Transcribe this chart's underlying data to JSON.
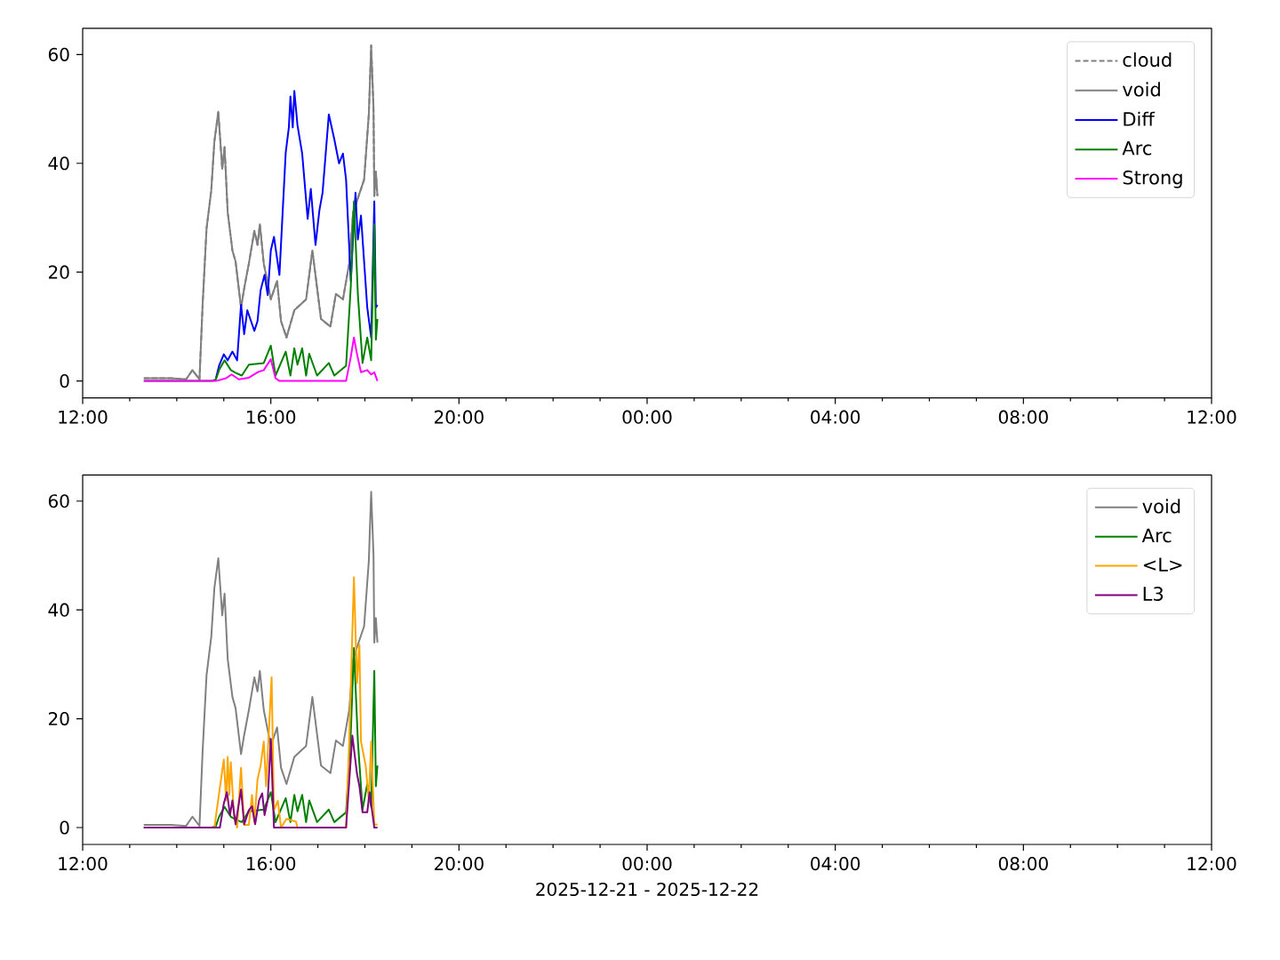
{
  "chart_data": [
    {
      "type": "line",
      "xlim": [
        "2025-12-21T12:00",
        "2025-12-22T12:00"
      ],
      "ylim": [
        -3.1,
        64.8
      ],
      "yticks": [
        0,
        20,
        40,
        60
      ],
      "xticks": [
        {
          "value": "2025-12-21T12:00",
          "label": "12:00"
        },
        {
          "value": "2025-12-21T13:00",
          "label": null
        },
        {
          "value": "2025-12-21T14:00",
          "label": null
        },
        {
          "value": "2025-12-21T15:00",
          "label": null
        },
        {
          "value": "2025-12-21T16:00",
          "label": "16:00"
        },
        {
          "value": "2025-12-21T17:00",
          "label": null
        },
        {
          "value": "2025-12-21T18:00",
          "label": null
        },
        {
          "value": "2025-12-21T19:00",
          "label": null
        },
        {
          "value": "2025-12-21T20:00",
          "label": "20:00"
        },
        {
          "value": "2025-12-21T21:00",
          "label": null
        },
        {
          "value": "2025-12-21T22:00",
          "label": null
        },
        {
          "value": "2025-12-21T23:00",
          "label": null
        },
        {
          "value": "2025-12-22T00:00",
          "label": "00:00"
        },
        {
          "value": "2025-12-22T01:00",
          "label": null
        },
        {
          "value": "2025-12-22T02:00",
          "label": null
        },
        {
          "value": "2025-12-22T03:00",
          "label": null
        },
        {
          "value": "2025-12-22T04:00",
          "label": "04:00"
        },
        {
          "value": "2025-12-22T05:00",
          "label": null
        },
        {
          "value": "2025-12-22T06:00",
          "label": null
        },
        {
          "value": "2025-12-22T07:00",
          "label": null
        },
        {
          "value": "2025-12-22T08:00",
          "label": "08:00"
        },
        {
          "value": "2025-12-22T09:00",
          "label": null
        },
        {
          "value": "2025-12-22T10:00",
          "label": null
        },
        {
          "value": "2025-12-22T11:00",
          "label": null
        },
        {
          "value": "2025-12-22T12:00",
          "label": "12:00"
        }
      ],
      "legend": "top right",
      "series": [
        {
          "name": "cloud",
          "color": "#808080",
          "line_style": "dashed",
          "x": [
            "2025-12-21T13:18",
            "2025-12-21T13:53",
            "2025-12-21T14:12",
            "2025-12-21T14:20",
            "2025-12-21T14:29",
            "2025-12-21T14:33",
            "2025-12-21T14:38",
            "2025-12-21T14:44",
            "2025-12-21T14:48",
            "2025-12-21T14:53",
            "2025-12-21T14:58",
            "2025-12-21T15:01",
            "2025-12-21T15:05",
            "2025-12-21T15:11",
            "2025-12-21T15:15",
            "2025-12-21T15:22",
            "2025-12-21T15:26",
            "2025-12-21T15:32",
            "2025-12-21T15:39",
            "2025-12-21T15:43",
            "2025-12-21T15:46",
            "2025-12-21T15:51",
            "2025-12-21T16:00",
            "2025-12-21T16:08",
            "2025-12-21T16:13",
            "2025-12-21T16:20",
            "2025-12-21T16:30",
            "2025-12-21T16:45",
            "2025-12-21T16:53",
            "2025-12-21T17:04",
            "2025-12-21T17:16",
            "2025-12-21T17:23",
            "2025-12-21T17:32",
            "2025-12-21T17:40",
            "2025-12-21T17:45",
            "2025-12-21T17:59",
            "2025-12-21T18:05",
            "2025-12-21T18:08",
            "2025-12-21T18:11",
            "2025-12-21T18:12",
            "2025-12-21T18:14",
            "2025-12-21T18:16"
          ],
          "values": [
            0.5,
            0.5,
            0.3,
            2,
            0.3,
            14,
            28,
            35,
            44,
            49.5,
            39,
            43,
            31,
            24,
            22,
            13.5,
            17,
            21.6,
            27.6,
            25,
            28.8,
            21.6,
            15,
            18.4,
            11,
            8,
            13,
            15,
            24,
            11.4,
            10,
            16,
            15,
            21.6,
            31,
            37,
            49,
            61.7,
            50,
            34,
            38.5,
            34
          ]
        },
        {
          "name": "void",
          "color": "#808080",
          "x": [
            "2025-12-21T13:18",
            "2025-12-21T13:53",
            "2025-12-21T14:12",
            "2025-12-21T14:20",
            "2025-12-21T14:29",
            "2025-12-21T14:33",
            "2025-12-21T14:38",
            "2025-12-21T14:44",
            "2025-12-21T14:48",
            "2025-12-21T14:53",
            "2025-12-21T14:58",
            "2025-12-21T15:01",
            "2025-12-21T15:05",
            "2025-12-21T15:11",
            "2025-12-21T15:15",
            "2025-12-21T15:22",
            "2025-12-21T15:26",
            "2025-12-21T15:32",
            "2025-12-21T15:39",
            "2025-12-21T15:43",
            "2025-12-21T15:46",
            "2025-12-21T15:51",
            "2025-12-21T16:00",
            "2025-12-21T16:08",
            "2025-12-21T16:13",
            "2025-12-21T16:20",
            "2025-12-21T16:30",
            "2025-12-21T16:45",
            "2025-12-21T16:53",
            "2025-12-21T17:04",
            "2025-12-21T17:16",
            "2025-12-21T17:23",
            "2025-12-21T17:32",
            "2025-12-21T17:40",
            "2025-12-21T17:45",
            "2025-12-21T17:59",
            "2025-12-21T18:05",
            "2025-12-21T18:08",
            "2025-12-21T18:11",
            "2025-12-21T18:12",
            "2025-12-21T18:14",
            "2025-12-21T18:16"
          ],
          "values": [
            0.5,
            0.5,
            0.3,
            2,
            0.3,
            14,
            28,
            35,
            44,
            49.5,
            39,
            43,
            31,
            24,
            22,
            13.5,
            17,
            21.6,
            27.6,
            25,
            28.8,
            21.6,
            15,
            18.4,
            11,
            8,
            13,
            15,
            24,
            11.4,
            10,
            16,
            15,
            21.6,
            31,
            37,
            49,
            61.7,
            50,
            34,
            38.5,
            34
          ]
        },
        {
          "name": "Diff",
          "color": "#0000ff",
          "x": [
            "2025-12-21T14:50",
            "2025-12-21T14:54",
            "2025-12-21T15:00",
            "2025-12-21T15:05",
            "2025-12-21T15:11",
            "2025-12-21T15:17",
            "2025-12-21T15:22",
            "2025-12-21T15:26",
            "2025-12-21T15:30",
            "2025-12-21T15:39",
            "2025-12-21T15:43",
            "2025-12-21T15:47",
            "2025-12-21T15:52",
            "2025-12-21T15:56",
            "2025-12-21T16:00",
            "2025-12-21T16:04",
            "2025-12-21T16:11",
            "2025-12-21T16:19",
            "2025-12-21T16:23",
            "2025-12-21T16:25",
            "2025-12-21T16:28",
            "2025-12-21T16:30",
            "2025-12-21T16:34",
            "2025-12-21T16:40",
            "2025-12-21T16:47",
            "2025-12-21T16:51",
            "2025-12-21T16:57",
            "2025-12-21T17:02",
            "2025-12-21T17:06",
            "2025-12-21T17:14",
            "2025-12-21T17:21",
            "2025-12-21T17:27",
            "2025-12-21T17:32",
            "2025-12-21T17:36",
            "2025-12-21T17:42",
            "2025-12-21T17:48",
            "2025-12-21T17:51",
            "2025-12-21T17:55",
            "2025-12-21T18:03",
            "2025-12-21T18:08",
            "2025-12-21T18:12",
            "2025-12-21T18:14",
            "2025-12-21T18:16"
          ],
          "values": [
            0.5,
            2.8,
            4.9,
            3.8,
            5.4,
            3.8,
            14,
            8.6,
            13,
            9.2,
            11,
            16.7,
            19.5,
            15.8,
            24,
            26.5,
            19.5,
            42,
            46.6,
            52.3,
            46.6,
            53.3,
            47,
            41.8,
            29.8,
            35.3,
            25,
            31.4,
            34.6,
            49,
            44.4,
            40,
            41.8,
            37,
            18.4,
            34.6,
            26,
            30.4,
            13.5,
            8,
            33,
            13.5,
            14
          ]
        },
        {
          "name": "Arc",
          "color": "#008000",
          "x": [
            "2025-12-21T13:18",
            "2025-12-21T14:45",
            "2025-12-21T14:50",
            "2025-12-21T14:54",
            "2025-12-21T15:01",
            "2025-12-21T15:09",
            "2025-12-21T15:15",
            "2025-12-21T15:23",
            "2025-12-21T15:32",
            "2025-12-21T15:51",
            "2025-12-21T16:00",
            "2025-12-21T16:06",
            "2025-12-21T16:19",
            "2025-12-21T16:25",
            "2025-12-21T16:30",
            "2025-12-21T16:34",
            "2025-12-21T16:40",
            "2025-12-21T16:45",
            "2025-12-21T16:49",
            "2025-12-21T16:59",
            "2025-12-21T17:14",
            "2025-12-21T17:21",
            "2025-12-21T17:36",
            "2025-12-21T17:42",
            "2025-12-21T17:46",
            "2025-12-21T17:51",
            "2025-12-21T17:57",
            "2025-12-21T18:03",
            "2025-12-21T18:08",
            "2025-12-21T18:12",
            "2025-12-21T18:14",
            "2025-12-21T18:16"
          ],
          "values": [
            0,
            0,
            0.3,
            2,
            3.8,
            2,
            1.5,
            1,
            3,
            3.3,
            6.5,
            1,
            5.4,
            1,
            6,
            3,
            6,
            1,
            5,
            1,
            3.3,
            1,
            2.8,
            17.4,
            33,
            16,
            3.3,
            8,
            3.8,
            28.8,
            7.6,
            11.4
          ]
        },
        {
          "name": "Strong",
          "color": "#ff00ff",
          "x": [
            "2025-12-21T13:18",
            "2025-12-21T14:50",
            "2025-12-21T15:03",
            "2025-12-21T15:10",
            "2025-12-21T15:19",
            "2025-12-21T15:32",
            "2025-12-21T15:43",
            "2025-12-21T15:51",
            "2025-12-21T16:00",
            "2025-12-21T16:06",
            "2025-12-21T16:11",
            "2025-12-21T17:36",
            "2025-12-21T17:42",
            "2025-12-21T17:46",
            "2025-12-21T17:50",
            "2025-12-21T17:55",
            "2025-12-21T18:03",
            "2025-12-21T18:08",
            "2025-12-21T18:12",
            "2025-12-21T18:16"
          ],
          "values": [
            0,
            0,
            0.5,
            1.2,
            0.3,
            0.6,
            1.6,
            2,
            4,
            0.5,
            0,
            0,
            4.4,
            8,
            4.9,
            1.6,
            2,
            1.2,
            1.6,
            0
          ]
        }
      ]
    },
    {
      "type": "line",
      "xlim": [
        "2025-12-21T12:00",
        "2025-12-22T12:00"
      ],
      "ylim": [
        -3.1,
        64.8
      ],
      "yticks": [
        0,
        20,
        40,
        60
      ],
      "xticks": [
        {
          "value": "2025-12-21T12:00",
          "label": "12:00"
        },
        {
          "value": "2025-12-21T13:00",
          "label": null
        },
        {
          "value": "2025-12-21T14:00",
          "label": null
        },
        {
          "value": "2025-12-21T15:00",
          "label": null
        },
        {
          "value": "2025-12-21T16:00",
          "label": "16:00"
        },
        {
          "value": "2025-12-21T17:00",
          "label": null
        },
        {
          "value": "2025-12-21T18:00",
          "label": null
        },
        {
          "value": "2025-12-21T19:00",
          "label": null
        },
        {
          "value": "2025-12-21T20:00",
          "label": "20:00"
        },
        {
          "value": "2025-12-21T21:00",
          "label": null
        },
        {
          "value": "2025-12-21T22:00",
          "label": null
        },
        {
          "value": "2025-12-21T23:00",
          "label": null
        },
        {
          "value": "2025-12-22T00:00",
          "label": "00:00"
        },
        {
          "value": "2025-12-22T01:00",
          "label": null
        },
        {
          "value": "2025-12-22T02:00",
          "label": null
        },
        {
          "value": "2025-12-22T03:00",
          "label": null
        },
        {
          "value": "2025-12-22T04:00",
          "label": "04:00"
        },
        {
          "value": "2025-12-22T05:00",
          "label": null
        },
        {
          "value": "2025-12-22T06:00",
          "label": null
        },
        {
          "value": "2025-12-22T07:00",
          "label": null
        },
        {
          "value": "2025-12-22T08:00",
          "label": "08:00"
        },
        {
          "value": "2025-12-22T09:00",
          "label": null
        },
        {
          "value": "2025-12-22T10:00",
          "label": null
        },
        {
          "value": "2025-12-22T11:00",
          "label": null
        },
        {
          "value": "2025-12-22T12:00",
          "label": "12:00"
        }
      ],
      "xlabel": "2025-12-21 - 2025-12-22",
      "legend": "top right",
      "series": [
        {
          "name": "void",
          "color": "#808080",
          "x": [
            "2025-12-21T13:18",
            "2025-12-21T13:53",
            "2025-12-21T14:12",
            "2025-12-21T14:20",
            "2025-12-21T14:29",
            "2025-12-21T14:33",
            "2025-12-21T14:38",
            "2025-12-21T14:44",
            "2025-12-21T14:48",
            "2025-12-21T14:53",
            "2025-12-21T14:58",
            "2025-12-21T15:01",
            "2025-12-21T15:05",
            "2025-12-21T15:11",
            "2025-12-21T15:15",
            "2025-12-21T15:22",
            "2025-12-21T15:26",
            "2025-12-21T15:32",
            "2025-12-21T15:39",
            "2025-12-21T15:43",
            "2025-12-21T15:46",
            "2025-12-21T15:51",
            "2025-12-21T16:00",
            "2025-12-21T16:08",
            "2025-12-21T16:13",
            "2025-12-21T16:20",
            "2025-12-21T16:30",
            "2025-12-21T16:45",
            "2025-12-21T16:53",
            "2025-12-21T17:04",
            "2025-12-21T17:16",
            "2025-12-21T17:23",
            "2025-12-21T17:32",
            "2025-12-21T17:40",
            "2025-12-21T17:45",
            "2025-12-21T17:59",
            "2025-12-21T18:05",
            "2025-12-21T18:08",
            "2025-12-21T18:11",
            "2025-12-21T18:12",
            "2025-12-21T18:14",
            "2025-12-21T18:16"
          ],
          "values": [
            0.5,
            0.5,
            0.3,
            2,
            0.3,
            14,
            28,
            35,
            44,
            49.5,
            39,
            43,
            31,
            24,
            22,
            13.5,
            17,
            21.6,
            27.6,
            25,
            28.8,
            21.6,
            15,
            18.4,
            11,
            8,
            13,
            15,
            24,
            11.4,
            10,
            16,
            15,
            21.6,
            31,
            37,
            49,
            61.7,
            50,
            34,
            38.5,
            34
          ]
        },
        {
          "name": "Arc",
          "color": "#008000",
          "x": [
            "2025-12-21T13:18",
            "2025-12-21T14:45",
            "2025-12-21T14:50",
            "2025-12-21T14:54",
            "2025-12-21T15:01",
            "2025-12-21T15:09",
            "2025-12-21T15:15",
            "2025-12-21T15:23",
            "2025-12-21T15:32",
            "2025-12-21T15:51",
            "2025-12-21T16:00",
            "2025-12-21T16:06",
            "2025-12-21T16:19",
            "2025-12-21T16:25",
            "2025-12-21T16:30",
            "2025-12-21T16:34",
            "2025-12-21T16:40",
            "2025-12-21T16:45",
            "2025-12-21T16:49",
            "2025-12-21T16:59",
            "2025-12-21T17:14",
            "2025-12-21T17:21",
            "2025-12-21T17:36",
            "2025-12-21T17:42",
            "2025-12-21T17:46",
            "2025-12-21T17:51",
            "2025-12-21T17:57",
            "2025-12-21T18:03",
            "2025-12-21T18:08",
            "2025-12-21T18:12",
            "2025-12-21T18:14",
            "2025-12-21T18:16"
          ],
          "values": [
            0,
            0,
            0.3,
            2,
            3.8,
            2,
            1.5,
            1,
            3,
            3.3,
            6.5,
            1,
            5.4,
            1,
            6,
            3,
            6,
            1,
            5,
            1,
            3.3,
            1,
            2.8,
            17.4,
            33,
            16,
            3.3,
            8,
            3.8,
            28.8,
            7.6,
            11.4
          ]
        },
        {
          "name": "<L>",
          "color": "#ffa500",
          "x": [
            "2025-12-21T13:18",
            "2025-12-21T14:48",
            "2025-12-21T15:00",
            "2025-12-21T15:03",
            "2025-12-21T15:05",
            "2025-12-21T15:07",
            "2025-12-21T15:09",
            "2025-12-21T15:13",
            "2025-12-21T15:17",
            "2025-12-21T15:22",
            "2025-12-21T15:26",
            "2025-12-21T15:32",
            "2025-12-21T15:36",
            "2025-12-21T15:39",
            "2025-12-21T15:43",
            "2025-12-21T15:47",
            "2025-12-21T15:51",
            "2025-12-21T15:54",
            "2025-12-21T16:01",
            "2025-12-21T16:04",
            "2025-12-21T16:09",
            "2025-12-21T16:13",
            "2025-12-21T16:20",
            "2025-12-21T16:32",
            "2025-12-21T16:34",
            "2025-12-21T17:36",
            "2025-12-21T17:40",
            "2025-12-21T17:46",
            "2025-12-21T17:50",
            "2025-12-21T17:53",
            "2025-12-21T17:55",
            "2025-12-21T18:01",
            "2025-12-21T18:05",
            "2025-12-21T18:08",
            "2025-12-21T18:12",
            "2025-12-21T18:16"
          ],
          "values": [
            0,
            0,
            12.5,
            5,
            13,
            6,
            12,
            2.3,
            0,
            11,
            0.5,
            0.5,
            6,
            1,
            8.8,
            11.4,
            15.8,
            7.6,
            27.6,
            3.2,
            4.9,
            0,
            1.6,
            1.1,
            0,
            0,
            15.8,
            46,
            26.6,
            33.6,
            15.8,
            11.4,
            5,
            15.8,
            0.6,
            0.5
          ]
        },
        {
          "name": "L3",
          "color": "#800080",
          "x": [
            "2025-12-21T13:18",
            "2025-12-21T14:55",
            "2025-12-21T15:00",
            "2025-12-21T15:04",
            "2025-12-21T15:08",
            "2025-12-21T15:11",
            "2025-12-21T15:15",
            "2025-12-21T15:22",
            "2025-12-21T15:26",
            "2025-12-21T15:32",
            "2025-12-21T15:36",
            "2025-12-21T15:40",
            "2025-12-21T15:45",
            "2025-12-21T15:49",
            "2025-12-21T15:52",
            "2025-12-21T15:56",
            "2025-12-21T16:00",
            "2025-12-21T16:04",
            "2025-12-21T17:36",
            "2025-12-21T17:44",
            "2025-12-21T17:50",
            "2025-12-21T17:53",
            "2025-12-21T17:57",
            "2025-12-21T18:03",
            "2025-12-21T18:06",
            "2025-12-21T18:12",
            "2025-12-21T18:16"
          ],
          "values": [
            0,
            0,
            4.4,
            6.5,
            2.3,
            5,
            0.6,
            7,
            0.6,
            3.2,
            3.9,
            0.6,
            5,
            6.3,
            2.3,
            5,
            16.3,
            0,
            0,
            16.9,
            9.8,
            7.6,
            2.8,
            2.8,
            6.5,
            0,
            0
          ]
        }
      ]
    }
  ]
}
